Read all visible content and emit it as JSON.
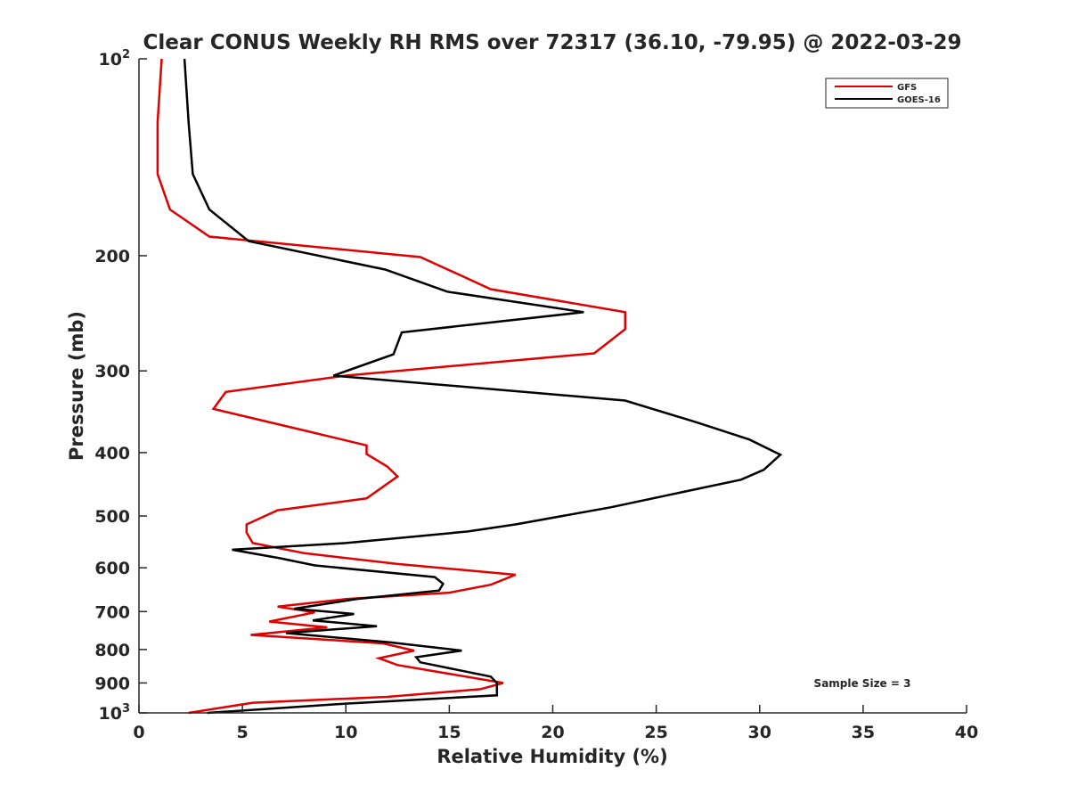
{
  "chart_data": {
    "type": "line",
    "title": "Clear CONUS Weekly RH RMS over 72317 (36.10, -79.95) @ 2022-03-29",
    "xlabel": "Relative Humidity (%)",
    "ylabel": "Pressure (mb)",
    "xlim": [
      0,
      40
    ],
    "ylim": [
      100,
      1000
    ],
    "yscale": "log",
    "y_reversed": true,
    "grid": false,
    "legend_position": "top-right",
    "x_ticks": [
      "0",
      "5",
      "10",
      "15",
      "20",
      "25",
      "30",
      "35",
      "40"
    ],
    "y_ticks": [
      {
        "value": 100,
        "base": "10",
        "exp": "2"
      },
      {
        "value": 200,
        "label": "200"
      },
      {
        "value": 300,
        "label": "300"
      },
      {
        "value": 400,
        "label": "400"
      },
      {
        "value": 500,
        "label": "500"
      },
      {
        "value": 600,
        "label": "600"
      },
      {
        "value": 700,
        "label": "700"
      },
      {
        "value": 800,
        "label": "800"
      },
      {
        "value": 900,
        "label": "900"
      },
      {
        "value": 1000,
        "base": "10",
        "exp": "3"
      }
    ],
    "annotation": "Sample Size = 3",
    "series": [
      {
        "name": "GFS",
        "color": "#e00000",
        "points": [
          [
            1.1,
            100
          ],
          [
            0.9,
            125
          ],
          [
            0.9,
            150
          ],
          [
            1.5,
            170
          ],
          [
            3.4,
            187
          ],
          [
            13.6,
            201
          ],
          [
            15.5,
            214
          ],
          [
            17.0,
            225
          ],
          [
            23.5,
            244
          ],
          [
            23.5,
            259
          ],
          [
            22.0,
            282
          ],
          [
            10.0,
            305
          ],
          [
            4.2,
            323
          ],
          [
            3.6,
            343
          ],
          [
            8.0,
            370
          ],
          [
            11.0,
            390
          ],
          [
            11.0,
            402
          ],
          [
            12.0,
            420
          ],
          [
            12.5,
            435
          ],
          [
            11.0,
            470
          ],
          [
            6.7,
            490
          ],
          [
            5.2,
            515
          ],
          [
            5.2,
            530
          ],
          [
            5.5,
            550
          ],
          [
            8.0,
            570
          ],
          [
            12.5,
            592
          ],
          [
            18.2,
            615
          ],
          [
            17.0,
            637
          ],
          [
            15.0,
            655
          ],
          [
            10.0,
            670
          ],
          [
            6.7,
            688
          ],
          [
            8.5,
            702
          ],
          [
            6.3,
            725
          ],
          [
            9.1,
            740
          ],
          [
            5.4,
            760
          ],
          [
            11.8,
            783
          ],
          [
            13.3,
            803
          ],
          [
            11.6,
            825
          ],
          [
            12.5,
            845
          ],
          [
            17.6,
            900
          ],
          [
            16.5,
            920
          ],
          [
            12.0,
            945
          ],
          [
            5.5,
            965
          ],
          [
            2.4,
            1000
          ]
        ]
      },
      {
        "name": "GOES-16",
        "color": "#000000",
        "points": [
          [
            2.2,
            100
          ],
          [
            2.4,
            125
          ],
          [
            2.6,
            150
          ],
          [
            3.4,
            170
          ],
          [
            5.3,
            190
          ],
          [
            11.9,
            210
          ],
          [
            14.9,
            227
          ],
          [
            21.5,
            244
          ],
          [
            12.7,
            262
          ],
          [
            12.3,
            283
          ],
          [
            9.4,
            305
          ],
          [
            23.5,
            333
          ],
          [
            27.0,
            360
          ],
          [
            29.5,
            382
          ],
          [
            31.0,
            403
          ],
          [
            30.2,
            425
          ],
          [
            29.1,
            440
          ],
          [
            22.8,
            485
          ],
          [
            18.2,
            515
          ],
          [
            15.9,
            528
          ],
          [
            10.0,
            550
          ],
          [
            4.5,
            563
          ],
          [
            6.8,
            580
          ],
          [
            8.5,
            595
          ],
          [
            14.3,
            620
          ],
          [
            14.7,
            635
          ],
          [
            14.5,
            650
          ],
          [
            10.5,
            670
          ],
          [
            7.5,
            693
          ],
          [
            10.4,
            706
          ],
          [
            8.4,
            722
          ],
          [
            11.5,
            737
          ],
          [
            7.1,
            755
          ],
          [
            12.1,
            780
          ],
          [
            15.6,
            803
          ],
          [
            13.4,
            822
          ],
          [
            13.6,
            837
          ],
          [
            17.0,
            880
          ],
          [
            17.3,
            900
          ],
          [
            17.3,
            940
          ],
          [
            10.0,
            968
          ],
          [
            3.3,
            1000
          ]
        ]
      }
    ]
  }
}
